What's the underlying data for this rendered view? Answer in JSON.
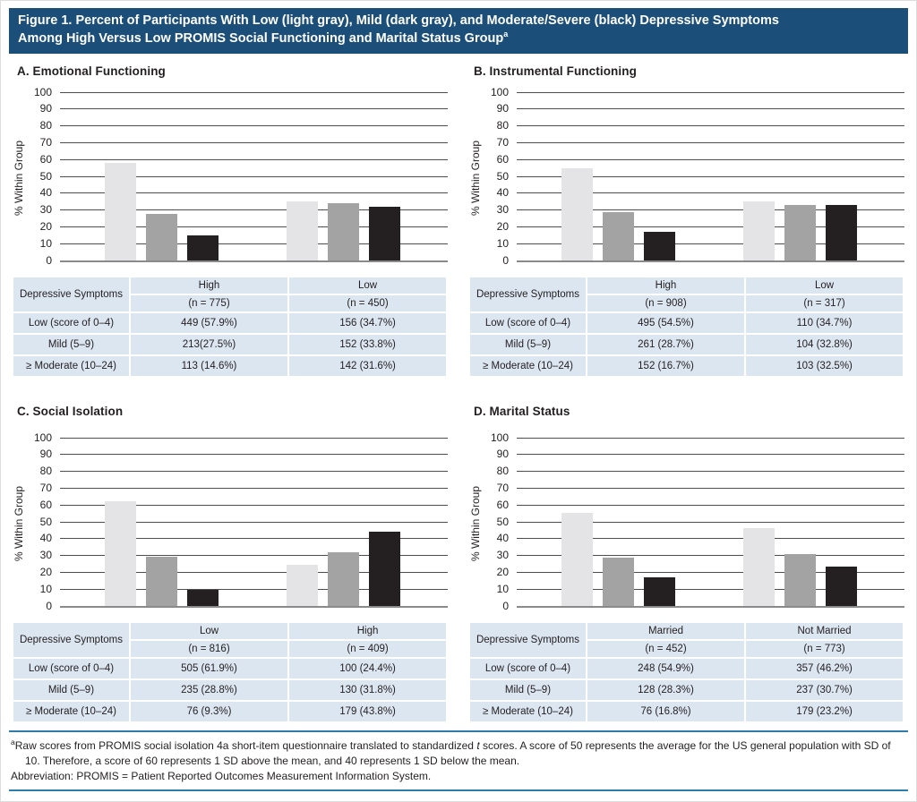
{
  "figure": {
    "title_line1": "Figure 1. Percent of Participants With Low (light gray), Mild (dark gray), and Moderate/Severe (black) Depressive Symptoms",
    "title_line2": "Among High Versus Low PROMIS Social Functioning and Marital Status Group",
    "title_sup": "a"
  },
  "colors": {
    "header_bg": "#1b4e79",
    "table_cell_blue": "#dce6f1",
    "bar_light_gray": "#e4e4e6",
    "bar_dark_gray": "#a3a3a3",
    "bar_black": "#242021",
    "rule_blue": "#2e7cad",
    "gridline": "#4d4d4f"
  },
  "chart_data": [
    {
      "type": "bar",
      "title": "A. Emotional Functioning",
      "ylabel": "% Within Group",
      "ylim": [
        0,
        100
      ],
      "yticks": [
        0,
        10,
        20,
        30,
        40,
        50,
        60,
        70,
        80,
        90,
        100
      ],
      "grid": "horizontal",
      "legend_position": "none",
      "categories": [
        "High",
        "Low"
      ],
      "series": [
        {
          "name": "Low (light gray)",
          "values": [
            57.9,
            34.7
          ]
        },
        {
          "name": "Mild (dark gray)",
          "values": [
            27.5,
            33.8
          ]
        },
        {
          "name": "Moderate/Severe (black)",
          "values": [
            14.6,
            31.6
          ]
        }
      ],
      "table": {
        "col_header": "Depressive Symptoms",
        "groups": [
          {
            "label": "High",
            "n": "(n = 775)"
          },
          {
            "label": "Low",
            "n": "(n = 450)"
          }
        ],
        "rows": [
          {
            "label": "Low (score of 0–4)",
            "values": [
              "449 (57.9%)",
              "156 (34.7%)"
            ]
          },
          {
            "label": "Mild (5–9)",
            "values": [
              "213(27.5%)",
              "152 (33.8%)"
            ]
          },
          {
            "label": "≥ Moderate (10–24)",
            "values": [
              "113 (14.6%)",
              "142 (31.6%)"
            ]
          }
        ]
      }
    },
    {
      "type": "bar",
      "title": "B. Instrumental Functioning",
      "ylabel": "% Within Group",
      "ylim": [
        0,
        100
      ],
      "yticks": [
        0,
        10,
        20,
        30,
        40,
        50,
        60,
        70,
        80,
        90,
        100
      ],
      "grid": "horizontal",
      "legend_position": "none",
      "categories": [
        "High",
        "Low"
      ],
      "series": [
        {
          "name": "Low (light gray)",
          "values": [
            54.5,
            34.7
          ]
        },
        {
          "name": "Mild (dark gray)",
          "values": [
            28.7,
            32.8
          ]
        },
        {
          "name": "Moderate/Severe (black)",
          "values": [
            16.7,
            32.5
          ]
        }
      ],
      "table": {
        "col_header": "Depressive Symptoms",
        "groups": [
          {
            "label": "High",
            "n": "(n = 908)"
          },
          {
            "label": "Low",
            "n": "(n = 317)"
          }
        ],
        "rows": [
          {
            "label": "Low (score of 0–4)",
            "values": [
              "495 (54.5%)",
              "110 (34.7%)"
            ]
          },
          {
            "label": "Mild (5–9)",
            "values": [
              "261 (28.7%)",
              "104 (32.8%)"
            ]
          },
          {
            "label": "≥ Moderate (10–24)",
            "values": [
              "152 (16.7%)",
              "103 (32.5%)"
            ]
          }
        ]
      }
    },
    {
      "type": "bar",
      "title": "C. Social Isolation",
      "ylabel": "% Within Group",
      "ylim": [
        0,
        100
      ],
      "yticks": [
        0,
        10,
        20,
        30,
        40,
        50,
        60,
        70,
        80,
        90,
        100
      ],
      "grid": "horizontal",
      "legend_position": "none",
      "categories": [
        "Low",
        "High"
      ],
      "series": [
        {
          "name": "Low (light gray)",
          "values": [
            61.9,
            24.4
          ]
        },
        {
          "name": "Mild (dark gray)",
          "values": [
            28.8,
            31.8
          ]
        },
        {
          "name": "Moderate/Severe (black)",
          "values": [
            9.3,
            43.8
          ]
        }
      ],
      "table": {
        "col_header": "Depressive Symptoms",
        "groups": [
          {
            "label": "Low",
            "n": "(n = 816)"
          },
          {
            "label": "High",
            "n": "(n = 409)"
          }
        ],
        "rows": [
          {
            "label": "Low (score of 0–4)",
            "values": [
              "505 (61.9%)",
              "100 (24.4%)"
            ]
          },
          {
            "label": "Mild (5–9)",
            "values": [
              "235 (28.8%)",
              "130 (31.8%)"
            ]
          },
          {
            "label": "≥ Moderate (10–24)",
            "values": [
              "76 (9.3%)",
              "179 (43.8%)"
            ]
          }
        ]
      }
    },
    {
      "type": "bar",
      "title": "D. Marital Status",
      "ylabel": "% Within Group",
      "ylim": [
        0,
        100
      ],
      "yticks": [
        0,
        10,
        20,
        30,
        40,
        50,
        60,
        70,
        80,
        90,
        100
      ],
      "grid": "horizontal",
      "legend_position": "none",
      "categories": [
        "Married",
        "Not Married"
      ],
      "series": [
        {
          "name": "Low (light gray)",
          "values": [
            54.9,
            46.2
          ]
        },
        {
          "name": "Mild (dark gray)",
          "values": [
            28.3,
            30.7
          ]
        },
        {
          "name": "Moderate/Severe (black)",
          "values": [
            16.8,
            23.2
          ]
        }
      ],
      "table": {
        "col_header": "Depressive Symptoms",
        "groups": [
          {
            "label": "Married",
            "n": "(n = 452)"
          },
          {
            "label": "Not Married",
            "n": "(n = 773)"
          }
        ],
        "rows": [
          {
            "label": "Low (score of 0–4)",
            "values": [
              "248 (54.9%)",
              "357 (46.2%)"
            ]
          },
          {
            "label": "Mild (5–9)",
            "values": [
              "128 (28.3%)",
              "237 (30.7%)"
            ]
          },
          {
            "label": "≥ Moderate (10–24)",
            "values": [
              "76 (16.8%)",
              "179 (23.2%)"
            ]
          }
        ]
      }
    }
  ],
  "footnote": {
    "sup": "a",
    "part1": "Raw scores from PROMIS social isolation 4a short-item questionnaire translated to standardized ",
    "italic": "t",
    "part2": " scores. A score of 50 represents the average for the US general population with SD of 10. Therefore, a score of 60 represents 1 SD above the mean, and 40 represents 1 SD below the mean.",
    "abbreviation": "Abbreviation: PROMIS = Patient Reported Outcomes Measurement Information System."
  }
}
